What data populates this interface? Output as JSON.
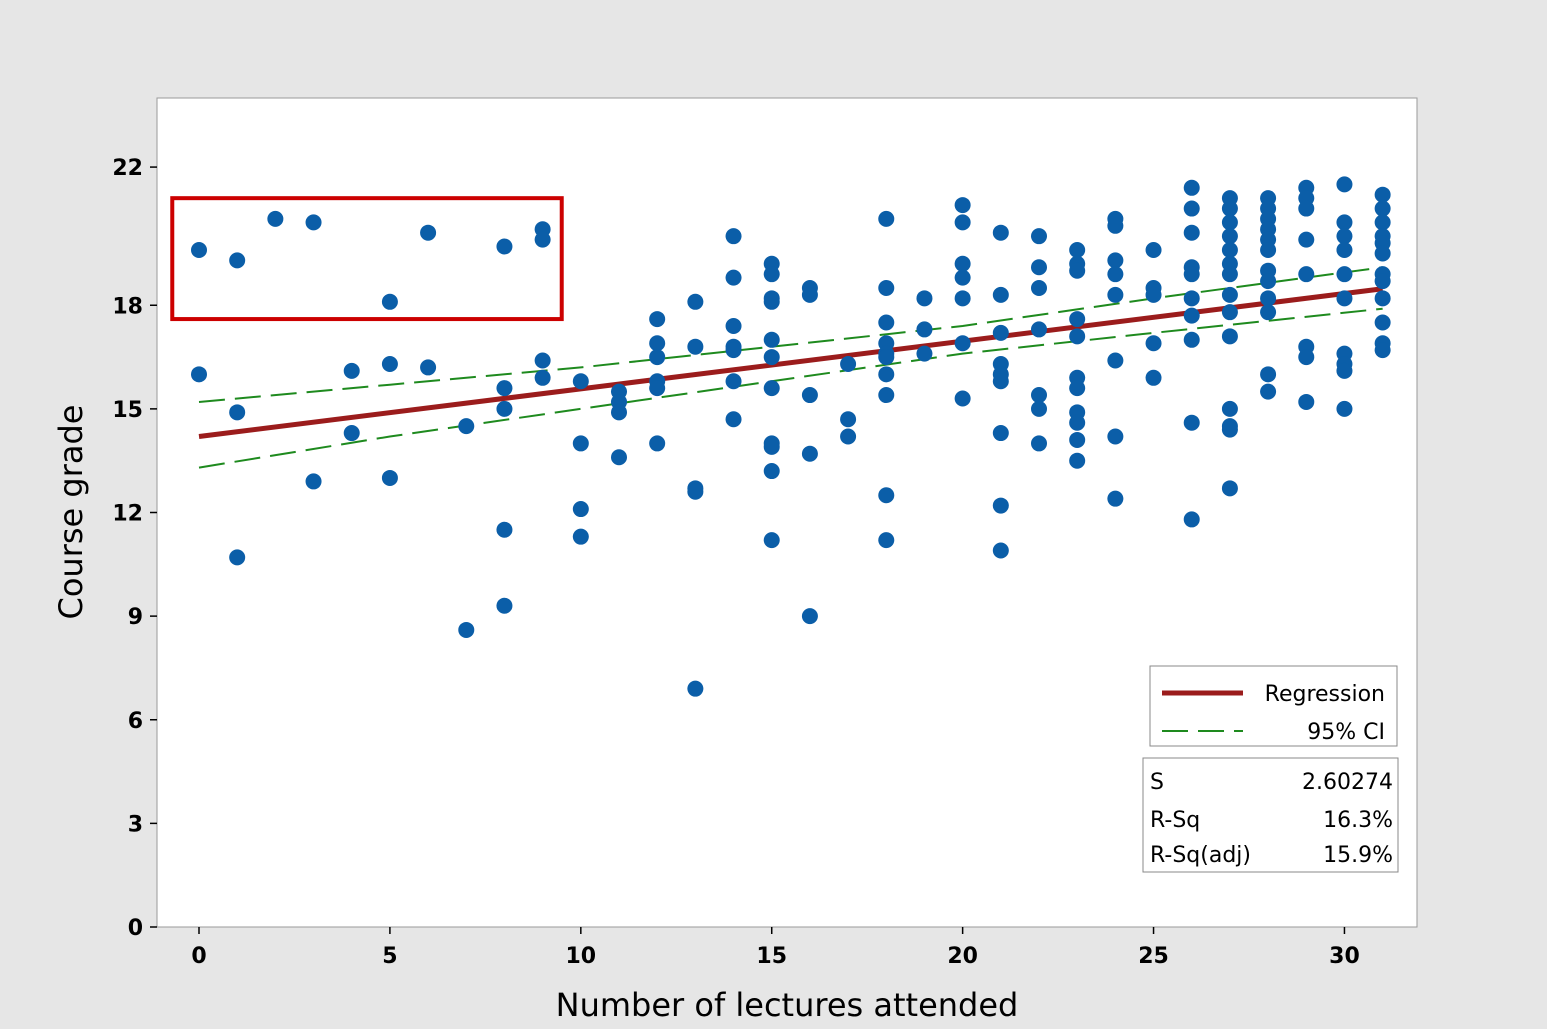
{
  "colors": {
    "figure_background": "#e6e6e6",
    "plot_background": "#ffffff",
    "points": "#0b5ea8",
    "regression": "#9b1c1c",
    "ci": "#1e8a1e",
    "highlight_box": "#cc0000"
  },
  "chart_data": {
    "type": "scatter",
    "xlabel": "Number of lectures attended",
    "ylabel": "Course grade",
    "xlim": [
      -1.1,
      31.9
    ],
    "ylim": [
      0,
      24
    ],
    "xticks": [
      0,
      5,
      10,
      15,
      20,
      25,
      30
    ],
    "yticks": [
      0,
      3,
      6,
      9,
      12,
      15,
      18,
      22
    ],
    "grid": false,
    "legend_position": "bottom-right",
    "legend": [
      {
        "label": "Regression",
        "style": "solid"
      },
      {
        "label": "95% CI",
        "style": "dashed"
      }
    ],
    "stats": [
      {
        "label": "S",
        "value": "2.60274"
      },
      {
        "label": "R-Sq",
        "value": "16.3%"
      },
      {
        "label": "R-Sq(adj)",
        "value": "15.9%"
      }
    ],
    "regression": {
      "intercept": 14.2,
      "slope": 0.138,
      "x_range": [
        0,
        31
      ]
    },
    "ci_lower": {
      "x": [
        0,
        5,
        10,
        15,
        20,
        25,
        31
      ],
      "y": [
        13.3,
        14.2,
        15.0,
        15.8,
        16.6,
        17.2,
        17.9
      ]
    },
    "ci_upper": {
      "x": [
        0,
        5,
        10,
        15,
        20,
        25,
        31
      ],
      "y": [
        15.2,
        15.7,
        16.2,
        16.8,
        17.4,
        18.2,
        19.1
      ]
    },
    "highlight": {
      "x_range": [
        -0.7,
        9.5
      ],
      "y_range": [
        17.6,
        21.1
      ]
    },
    "points": [
      {
        "x": 0,
        "y": 19.6
      },
      {
        "x": 0,
        "y": 16.0
      },
      {
        "x": 1,
        "y": 19.3
      },
      {
        "x": 1,
        "y": 14.9
      },
      {
        "x": 1,
        "y": 10.7
      },
      {
        "x": 2,
        "y": 20.5
      },
      {
        "x": 3,
        "y": 20.4
      },
      {
        "x": 3,
        "y": 12.9
      },
      {
        "x": 4,
        "y": 16.1
      },
      {
        "x": 4,
        "y": 14.3
      },
      {
        "x": 5,
        "y": 18.1
      },
      {
        "x": 5,
        "y": 16.3
      },
      {
        "x": 5,
        "y": 13.0
      },
      {
        "x": 6,
        "y": 20.1
      },
      {
        "x": 6,
        "y": 16.2
      },
      {
        "x": 7,
        "y": 14.5
      },
      {
        "x": 7,
        "y": 8.6
      },
      {
        "x": 8,
        "y": 19.7
      },
      {
        "x": 8,
        "y": 15.6
      },
      {
        "x": 8,
        "y": 15.0
      },
      {
        "x": 8,
        "y": 11.5
      },
      {
        "x": 8,
        "y": 9.3
      },
      {
        "x": 9,
        "y": 20.2
      },
      {
        "x": 9,
        "y": 19.9
      },
      {
        "x": 9,
        "y": 16.4
      },
      {
        "x": 9,
        "y": 15.9
      },
      {
        "x": 10,
        "y": 15.8
      },
      {
        "x": 10,
        "y": 14.0
      },
      {
        "x": 10,
        "y": 12.1
      },
      {
        "x": 10,
        "y": 11.3
      },
      {
        "x": 11,
        "y": 15.5
      },
      {
        "x": 11,
        "y": 15.2
      },
      {
        "x": 11,
        "y": 14.9
      },
      {
        "x": 11,
        "y": 13.6
      },
      {
        "x": 12,
        "y": 17.6
      },
      {
        "x": 12,
        "y": 16.9
      },
      {
        "x": 12,
        "y": 16.5
      },
      {
        "x": 12,
        "y": 15.8
      },
      {
        "x": 12,
        "y": 15.6
      },
      {
        "x": 12,
        "y": 14.0
      },
      {
        "x": 13,
        "y": 18.1
      },
      {
        "x": 13,
        "y": 16.8
      },
      {
        "x": 13,
        "y": 12.7
      },
      {
        "x": 13,
        "y": 12.6
      },
      {
        "x": 13,
        "y": 6.9
      },
      {
        "x": 14,
        "y": 20.0
      },
      {
        "x": 14,
        "y": 18.8
      },
      {
        "x": 14,
        "y": 17.4
      },
      {
        "x": 14,
        "y": 16.8
      },
      {
        "x": 14,
        "y": 16.7
      },
      {
        "x": 14,
        "y": 15.8
      },
      {
        "x": 14,
        "y": 14.7
      },
      {
        "x": 15,
        "y": 19.2
      },
      {
        "x": 15,
        "y": 18.9
      },
      {
        "x": 15,
        "y": 18.2
      },
      {
        "x": 15,
        "y": 18.1
      },
      {
        "x": 15,
        "y": 17.0
      },
      {
        "x": 15,
        "y": 16.5
      },
      {
        "x": 15,
        "y": 15.6
      },
      {
        "x": 15,
        "y": 14.0
      },
      {
        "x": 15,
        "y": 13.9
      },
      {
        "x": 15,
        "y": 13.2
      },
      {
        "x": 15,
        "y": 11.2
      },
      {
        "x": 16,
        "y": 18.5
      },
      {
        "x": 16,
        "y": 18.3
      },
      {
        "x": 16,
        "y": 15.4
      },
      {
        "x": 16,
        "y": 13.7
      },
      {
        "x": 16,
        "y": 9.0
      },
      {
        "x": 17,
        "y": 16.3
      },
      {
        "x": 17,
        "y": 14.7
      },
      {
        "x": 17,
        "y": 14.2
      },
      {
        "x": 18,
        "y": 20.5
      },
      {
        "x": 18,
        "y": 18.5
      },
      {
        "x": 18,
        "y": 17.5
      },
      {
        "x": 18,
        "y": 16.9
      },
      {
        "x": 18,
        "y": 16.6
      },
      {
        "x": 18,
        "y": 16.5
      },
      {
        "x": 18,
        "y": 16.0
      },
      {
        "x": 18,
        "y": 15.4
      },
      {
        "x": 18,
        "y": 12.5
      },
      {
        "x": 18,
        "y": 11.2
      },
      {
        "x": 19,
        "y": 18.2
      },
      {
        "x": 19,
        "y": 17.3
      },
      {
        "x": 19,
        "y": 16.6
      },
      {
        "x": 20,
        "y": 20.9
      },
      {
        "x": 20,
        "y": 20.4
      },
      {
        "x": 20,
        "y": 19.2
      },
      {
        "x": 20,
        "y": 18.8
      },
      {
        "x": 20,
        "y": 18.2
      },
      {
        "x": 20,
        "y": 16.9
      },
      {
        "x": 20,
        "y": 15.3
      },
      {
        "x": 21,
        "y": 20.1
      },
      {
        "x": 21,
        "y": 18.3
      },
      {
        "x": 21,
        "y": 17.2
      },
      {
        "x": 21,
        "y": 16.3
      },
      {
        "x": 21,
        "y": 16.0
      },
      {
        "x": 21,
        "y": 15.8
      },
      {
        "x": 21,
        "y": 14.3
      },
      {
        "x": 21,
        "y": 12.2
      },
      {
        "x": 21,
        "y": 10.9
      },
      {
        "x": 22,
        "y": 20.0
      },
      {
        "x": 22,
        "y": 19.1
      },
      {
        "x": 22,
        "y": 18.5
      },
      {
        "x": 22,
        "y": 17.3
      },
      {
        "x": 22,
        "y": 15.4
      },
      {
        "x": 22,
        "y": 15.0
      },
      {
        "x": 22,
        "y": 14.0
      },
      {
        "x": 23,
        "y": 19.6
      },
      {
        "x": 23,
        "y": 19.2
      },
      {
        "x": 23,
        "y": 19.0
      },
      {
        "x": 23,
        "y": 17.6
      },
      {
        "x": 23,
        "y": 17.1
      },
      {
        "x": 23,
        "y": 15.9
      },
      {
        "x": 23,
        "y": 15.6
      },
      {
        "x": 23,
        "y": 14.9
      },
      {
        "x": 23,
        "y": 14.6
      },
      {
        "x": 23,
        "y": 14.1
      },
      {
        "x": 23,
        "y": 13.5
      },
      {
        "x": 24,
        "y": 20.5
      },
      {
        "x": 24,
        "y": 20.3
      },
      {
        "x": 24,
        "y": 19.3
      },
      {
        "x": 24,
        "y": 18.9
      },
      {
        "x": 24,
        "y": 18.3
      },
      {
        "x": 24,
        "y": 16.4
      },
      {
        "x": 24,
        "y": 14.2
      },
      {
        "x": 24,
        "y": 12.4
      },
      {
        "x": 25,
        "y": 19.6
      },
      {
        "x": 25,
        "y": 18.5
      },
      {
        "x": 25,
        "y": 18.3
      },
      {
        "x": 25,
        "y": 16.9
      },
      {
        "x": 25,
        "y": 15.9
      },
      {
        "x": 26,
        "y": 21.4
      },
      {
        "x": 26,
        "y": 20.8
      },
      {
        "x": 26,
        "y": 20.1
      },
      {
        "x": 26,
        "y": 19.1
      },
      {
        "x": 26,
        "y": 18.9
      },
      {
        "x": 26,
        "y": 18.2
      },
      {
        "x": 26,
        "y": 17.7
      },
      {
        "x": 26,
        "y": 17.0
      },
      {
        "x": 26,
        "y": 14.6
      },
      {
        "x": 26,
        "y": 11.8
      },
      {
        "x": 27,
        "y": 21.1
      },
      {
        "x": 27,
        "y": 20.8
      },
      {
        "x": 27,
        "y": 20.4
      },
      {
        "x": 27,
        "y": 20.0
      },
      {
        "x": 27,
        "y": 19.6
      },
      {
        "x": 27,
        "y": 19.2
      },
      {
        "x": 27,
        "y": 18.9
      },
      {
        "x": 27,
        "y": 18.3
      },
      {
        "x": 27,
        "y": 17.8
      },
      {
        "x": 27,
        "y": 17.1
      },
      {
        "x": 27,
        "y": 15.0
      },
      {
        "x": 27,
        "y": 14.5
      },
      {
        "x": 27,
        "y": 14.4
      },
      {
        "x": 27,
        "y": 12.7
      },
      {
        "x": 28,
        "y": 21.1
      },
      {
        "x": 28,
        "y": 20.8
      },
      {
        "x": 28,
        "y": 20.5
      },
      {
        "x": 28,
        "y": 20.2
      },
      {
        "x": 28,
        "y": 19.9
      },
      {
        "x": 28,
        "y": 19.6
      },
      {
        "x": 28,
        "y": 19.0
      },
      {
        "x": 28,
        "y": 18.7
      },
      {
        "x": 28,
        "y": 18.2
      },
      {
        "x": 28,
        "y": 17.8
      },
      {
        "x": 28,
        "y": 16.0
      },
      {
        "x": 28,
        "y": 15.5
      },
      {
        "x": 29,
        "y": 21.4
      },
      {
        "x": 29,
        "y": 21.1
      },
      {
        "x": 29,
        "y": 20.8
      },
      {
        "x": 29,
        "y": 19.9
      },
      {
        "x": 29,
        "y": 18.9
      },
      {
        "x": 29,
        "y": 16.8
      },
      {
        "x": 29,
        "y": 16.5
      },
      {
        "x": 29,
        "y": 15.2
      },
      {
        "x": 30,
        "y": 21.5
      },
      {
        "x": 30,
        "y": 20.4
      },
      {
        "x": 30,
        "y": 20.0
      },
      {
        "x": 30,
        "y": 19.6
      },
      {
        "x": 30,
        "y": 18.9
      },
      {
        "x": 30,
        "y": 18.2
      },
      {
        "x": 30,
        "y": 16.6
      },
      {
        "x": 30,
        "y": 16.3
      },
      {
        "x": 30,
        "y": 16.1
      },
      {
        "x": 30,
        "y": 15.0
      },
      {
        "x": 31,
        "y": 21.2
      },
      {
        "x": 31,
        "y": 20.8
      },
      {
        "x": 31,
        "y": 20.4
      },
      {
        "x": 31,
        "y": 20.0
      },
      {
        "x": 31,
        "y": 19.8
      },
      {
        "x": 31,
        "y": 19.5
      },
      {
        "x": 31,
        "y": 18.9
      },
      {
        "x": 31,
        "y": 18.7
      },
      {
        "x": 31,
        "y": 18.2
      },
      {
        "x": 31,
        "y": 17.5
      },
      {
        "x": 31,
        "y": 16.9
      },
      {
        "x": 31,
        "y": 16.7
      }
    ]
  }
}
